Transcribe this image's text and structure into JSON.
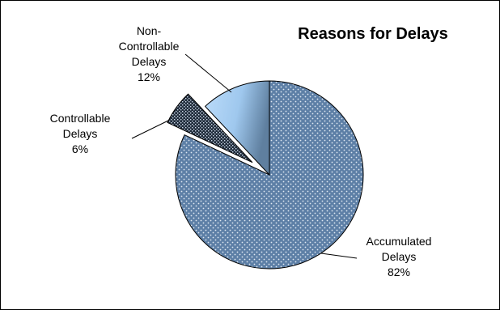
{
  "chart_data": {
    "type": "pie",
    "title": "Reasons for Delays",
    "slices": [
      {
        "key": "accumulated",
        "label_lines": [
          "Accumulated",
          "Delays",
          "82%"
        ],
        "value": 82,
        "color": "#5d7fa6",
        "pattern": "dotted",
        "exploded": false
      },
      {
        "key": "controllable",
        "label_lines": [
          "Controllable",
          "Delays",
          "6%"
        ],
        "value": 6,
        "color": "#1f2b3a",
        "pattern": "checkered",
        "exploded": true
      },
      {
        "key": "noncontrollable",
        "label_lines": [
          "Non-",
          "Controllable",
          "Delays",
          "12%"
        ],
        "value": 12,
        "color": "#9fc8ee",
        "pattern": "gradient",
        "exploded": false
      }
    ],
    "start_direction": "12 o'clock",
    "direction": "clockwise",
    "legend": "none",
    "labels": "outside with leader lines"
  }
}
